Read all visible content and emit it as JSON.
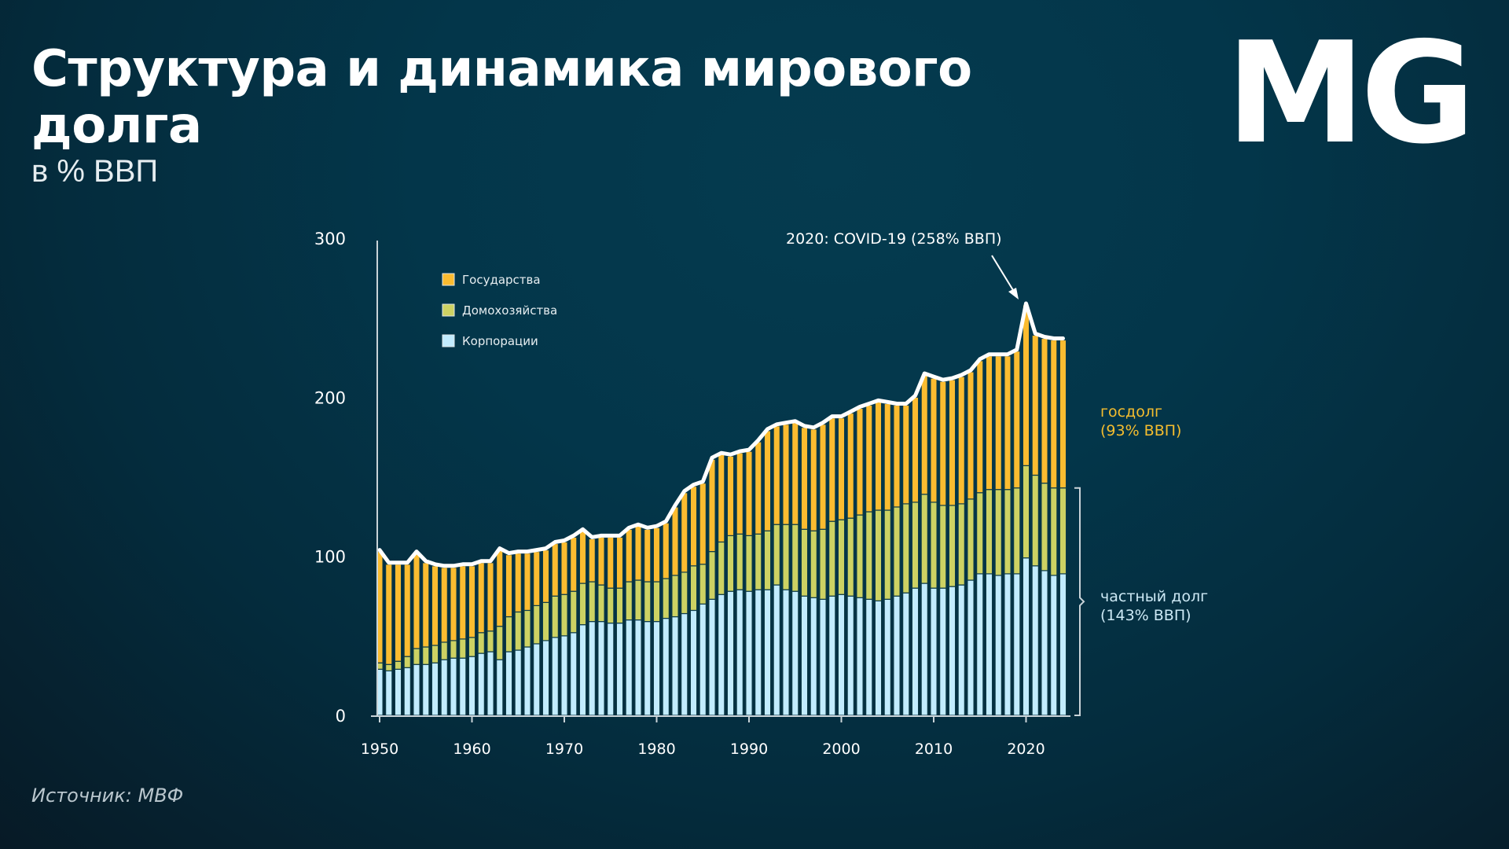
{
  "header": {
    "title": "Структура и динамика мирового долга",
    "subtitle": "в % ВВП",
    "logo": "MG"
  },
  "footer": {
    "source": "Источник: МВФ"
  },
  "colors": {
    "government": "#fbbc30",
    "households": "#cdd263",
    "corporations": "#c2ecfe",
    "total_line": "#ffffff",
    "gov_annotation": "#f5bd2e",
    "private_annotation": "#cde9f5",
    "axis": "#c9d3d8"
  },
  "chart_data": {
    "type": "bar",
    "stacked": true,
    "title": "Структура и динамика мирового долга",
    "subtitle": "в % ВВП",
    "xlabel": "",
    "ylabel": "",
    "ylim": [
      0,
      300
    ],
    "yticks": [
      0,
      100,
      200,
      300
    ],
    "xticks": [
      1950,
      1960,
      1970,
      1980,
      1990,
      2000,
      2010,
      2020
    ],
    "grid": false,
    "legend_position": "top-left",
    "legend": [
      "Государства",
      "Домохозяйства",
      "Корпорации"
    ],
    "categories": [
      1950,
      1951,
      1952,
      1953,
      1954,
      1955,
      1956,
      1957,
      1958,
      1959,
      1960,
      1961,
      1962,
      1963,
      1964,
      1965,
      1966,
      1967,
      1968,
      1969,
      1970,
      1971,
      1972,
      1973,
      1974,
      1975,
      1976,
      1977,
      1978,
      1979,
      1980,
      1981,
      1982,
      1983,
      1984,
      1985,
      1986,
      1987,
      1988,
      1989,
      1990,
      1991,
      1992,
      1993,
      1994,
      1995,
      1996,
      1997,
      1998,
      1999,
      2000,
      2001,
      2002,
      2003,
      2004,
      2005,
      2006,
      2007,
      2008,
      2009,
      2010,
      2011,
      2012,
      2013,
      2014,
      2015,
      2016,
      2017,
      2018,
      2019,
      2020,
      2021,
      2022,
      2023,
      2024
    ],
    "series": [
      {
        "name": "Корпорации",
        "values": [
          29,
          28,
          29,
          30,
          32,
          32,
          33,
          35,
          36,
          36,
          37,
          39,
          40,
          35,
          40,
          41,
          43,
          45,
          47,
          49,
          50,
          52,
          57,
          59,
          59,
          58,
          58,
          60,
          60,
          59,
          59,
          61,
          62,
          64,
          66,
          70,
          73,
          76,
          78,
          79,
          78,
          79,
          79,
          82,
          79,
          78,
          75,
          74,
          73,
          75,
          76,
          75,
          74,
          73,
          72,
          73,
          75,
          77,
          80,
          83,
          80,
          80,
          81,
          82,
          85,
          89,
          89,
          88,
          89,
          89,
          99,
          94,
          91,
          88,
          89
        ]
      },
      {
        "name": "Домохозяйства",
        "values": [
          4,
          4,
          5,
          7,
          10,
          11,
          11,
          11,
          11,
          12,
          12,
          13,
          13,
          21,
          22,
          24,
          23,
          24,
          24,
          26,
          26,
          26,
          26,
          25,
          23,
          22,
          22,
          24,
          25,
          25,
          25,
          25,
          26,
          26,
          28,
          25,
          30,
          33,
          35,
          35,
          35,
          35,
          37,
          38,
          41,
          42,
          42,
          42,
          44,
          47,
          47,
          49,
          52,
          55,
          57,
          56,
          56,
          56,
          54,
          56,
          54,
          52,
          51,
          51,
          51,
          51,
          53,
          54,
          53,
          54,
          58,
          57,
          55,
          55,
          54
        ]
      },
      {
        "name": "Государства",
        "values": [
          70,
          63,
          61,
          58,
          60,
          53,
          50,
          47,
          46,
          46,
          45,
          44,
          43,
          48,
          39,
          37,
          36,
          34,
          33,
          33,
          33,
          34,
          33,
          27,
          30,
          32,
          32,
          33,
          34,
          33,
          34,
          35,
          43,
          50,
          50,
          51,
          58,
          55,
          50,
          51,
          53,
          58,
          63,
          62,
          63,
          64,
          64,
          64,
          66,
          65,
          64,
          66,
          67,
          67,
          68,
          67,
          64,
          62,
          66,
          75,
          78,
          78,
          79,
          80,
          80,
          83,
          84,
          84,
          84,
          86,
          101,
          88,
          91,
          93,
          93
        ]
      }
    ],
    "total": [
      103,
      95,
      95,
      95,
      102,
      96,
      94,
      93,
      93,
      94,
      94,
      96,
      96,
      104,
      101,
      102,
      102,
      103,
      104,
      108,
      109,
      112,
      116,
      111,
      112,
      112,
      112,
      117,
      119,
      117,
      118,
      121,
      131,
      140,
      144,
      146,
      161,
      164,
      163,
      165,
      166,
      172,
      179,
      182,
      183,
      184,
      181,
      180,
      183,
      187,
      187,
      190,
      193,
      195,
      197,
      196,
      195,
      195,
      200,
      214,
      212,
      210,
      211,
      213,
      216,
      223,
      226,
      226,
      226,
      229,
      258,
      239,
      237,
      236,
      236
    ],
    "annotations": [
      {
        "year": 2020,
        "text": "2020: COVID-19 (258% ВВП)"
      },
      {
        "label": "госдолг",
        "value": "(93% ВВП)",
        "series": "Государства"
      },
      {
        "label": "частный долг",
        "value": "(143% ВВП)",
        "series": "Корпорации + Домохозяйства"
      }
    ]
  },
  "annotations": {
    "covid": "2020: COVID-19 (258% ВВП)",
    "gov_label": "госдолг",
    "gov_value": "(93% ВВП)",
    "private_label": "частный долг",
    "private_value": "(143% ВВП)"
  },
  "legend": [
    {
      "label": "Государства",
      "color": "#fbbc30"
    },
    {
      "label": "Домохозяйства",
      "color": "#cdd263"
    },
    {
      "label": "Корпорации",
      "color": "#c2ecfe"
    }
  ]
}
